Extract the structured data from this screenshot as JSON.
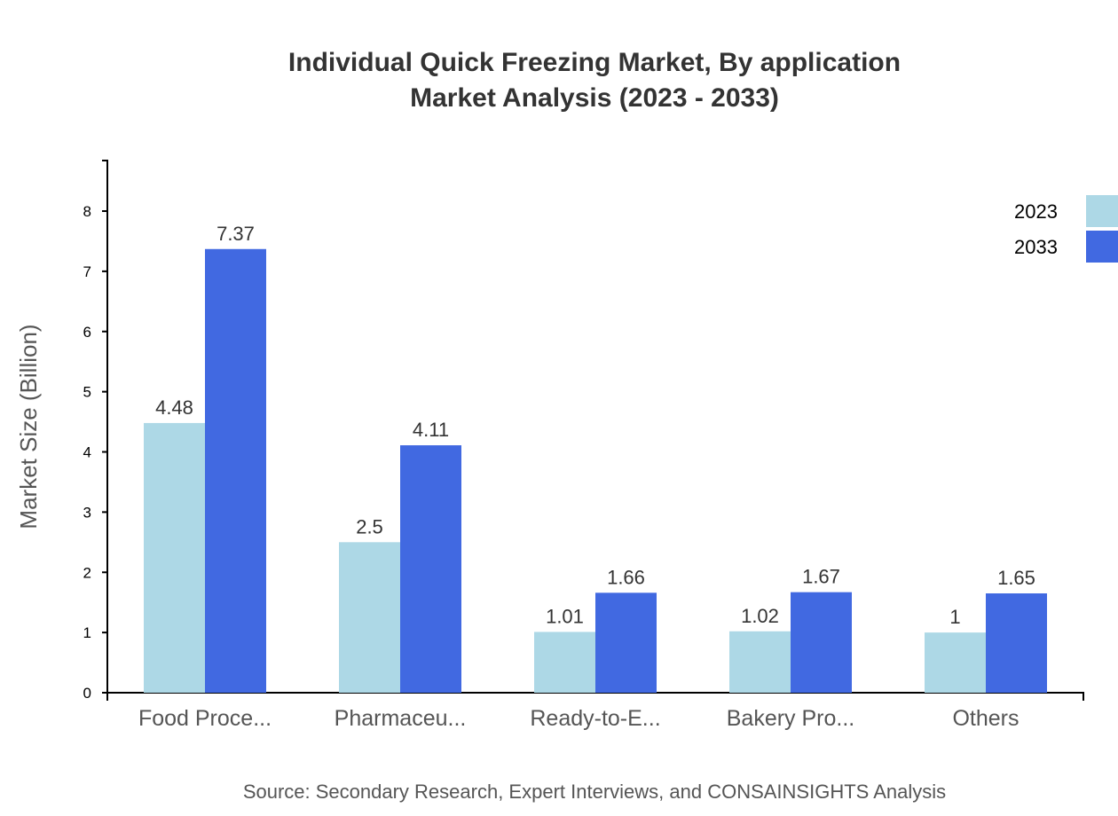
{
  "chart_data": {
    "type": "bar",
    "title": [
      "Individual Quick Freezing Market, By application",
      "Market Analysis (2023 - 2033)"
    ],
    "xlabel": "",
    "ylabel": "Market Size (Billion)",
    "ylim": [
      0,
      8.84
    ],
    "yticks": [
      0,
      1,
      2,
      3,
      4,
      5,
      6,
      7,
      8
    ],
    "categories": [
      "Food Proce...",
      "Pharmaceu...",
      "Ready-to-E...",
      "Bakery Pro...",
      "Others"
    ],
    "series": [
      {
        "name": "2023",
        "color": "#add8e6",
        "values": [
          4.48,
          2.5,
          1.01,
          1.02,
          1
        ]
      },
      {
        "name": "2033",
        "color": "#4169e1",
        "values": [
          7.37,
          4.11,
          1.66,
          1.67,
          1.65
        ]
      }
    ],
    "grid": false,
    "legend_position": "top-right",
    "source": "Source: Secondary Research, Expert Interviews, and CONSAINSIGHTS Analysis"
  }
}
